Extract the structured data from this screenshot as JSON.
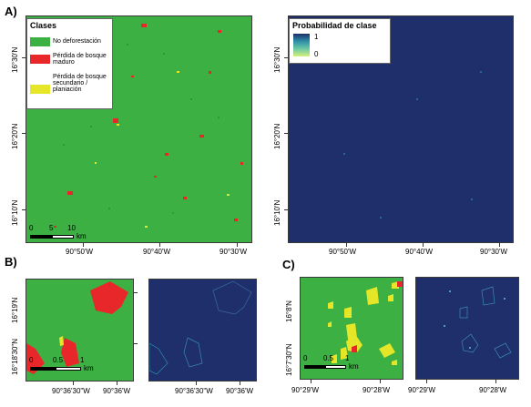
{
  "panels": {
    "A": "A)",
    "B": "B)",
    "C": "C)"
  },
  "legend_classes": {
    "title": "Clases",
    "items": [
      {
        "label": "No deforestación",
        "color": "#3cb043"
      },
      {
        "label": "Pérdida de bosque maduro",
        "color": "#e8272a"
      },
      {
        "label": "Pérdida de bosque secundario / planiación",
        "color": "#e6e629"
      }
    ]
  },
  "legend_probability": {
    "title": "Probabilidad de clase",
    "max": "1",
    "min": "0",
    "gradient_colors": [
      "#1e2f6b",
      "#2e8fa8",
      "#6cc9a4",
      "#d6f07a"
    ]
  },
  "scale_A": {
    "ticks": [
      "0",
      "5",
      "10"
    ],
    "unit": "km"
  },
  "scale_B": {
    "ticks": [
      "0",
      "0.5",
      "1"
    ],
    "unit": "km"
  },
  "scale_C": {
    "ticks": [
      "0",
      "0.5",
      "1"
    ],
    "unit": "km"
  },
  "axes": {
    "A_x": [
      "90°50'W",
      "90°40'W",
      "90°30'W"
    ],
    "A2_x": [
      "90°50'W",
      "90°40'W",
      "90°30'W"
    ],
    "A_y": [
      "16°30'N",
      "16°20'N",
      "16°10'N"
    ],
    "A2_y": [
      "16°30'N",
      "16°20'N",
      "16°10'N"
    ],
    "B_x": [
      "90°36'30\"W",
      "90°36'W"
    ],
    "B2_x": [
      "90°36'30\"W",
      "90°36'W"
    ],
    "B_y": [
      "16°19'N",
      "16°18'30\"N"
    ],
    "C_x": [
      "90°29'W",
      "90°28'W"
    ],
    "C2_x": [
      "90°29'W",
      "90°28'W"
    ],
    "C_y": [
      "16°8'N",
      "16°7'30\"N"
    ]
  },
  "colors": {
    "no_def": "#3cb043",
    "mature": "#e8272a",
    "secondary": "#e6e629",
    "navy": "#1e2f6b"
  }
}
